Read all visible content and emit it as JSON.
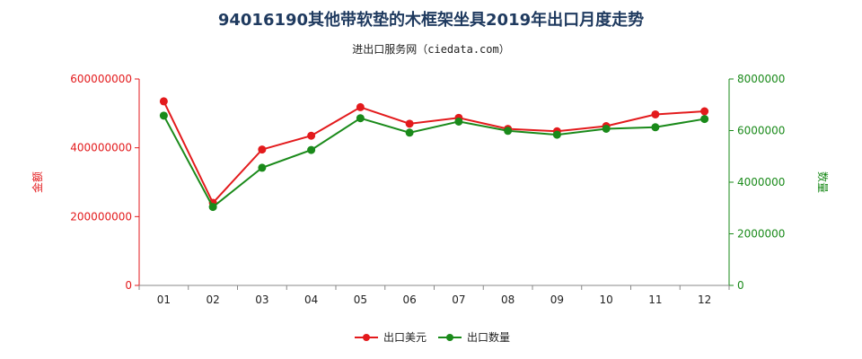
{
  "chart_data": {
    "type": "line",
    "title": "94016190其他带软垫的木框架坐具2019年出口月度走势",
    "subtitle": "进出口服务网（ciedata.com）",
    "categories": [
      "01",
      "02",
      "03",
      "04",
      "05",
      "06",
      "07",
      "08",
      "09",
      "10",
      "11",
      "12"
    ],
    "series": [
      {
        "name": "出口美元",
        "axis": "left",
        "color": "#e31a1c",
        "values": [
          535000000,
          240000000,
          395000000,
          435000000,
          518000000,
          470000000,
          487000000,
          455000000,
          448000000,
          463000000,
          497000000,
          506000000
        ]
      },
      {
        "name": "出口数量",
        "axis": "right",
        "color": "#1a8a1a",
        "values": [
          6580000,
          3040000,
          4560000,
          5250000,
          6480000,
          5920000,
          6350000,
          5990000,
          5840000,
          6070000,
          6130000,
          6450000
        ]
      }
    ],
    "y_left": {
      "label": "金额",
      "color": "#e31a1c",
      "ylim": [
        0,
        600000000
      ],
      "ticks": [
        "0",
        "200000000",
        "400000000",
        "600000000"
      ]
    },
    "y_right": {
      "label": "数量",
      "color": "#1a8a1a",
      "ylim": [
        0,
        8000000
      ],
      "ticks": [
        "0",
        "2000000",
        "4000000",
        "6000000",
        "8000000"
      ]
    },
    "grid": false,
    "legend_position": "bottom"
  }
}
